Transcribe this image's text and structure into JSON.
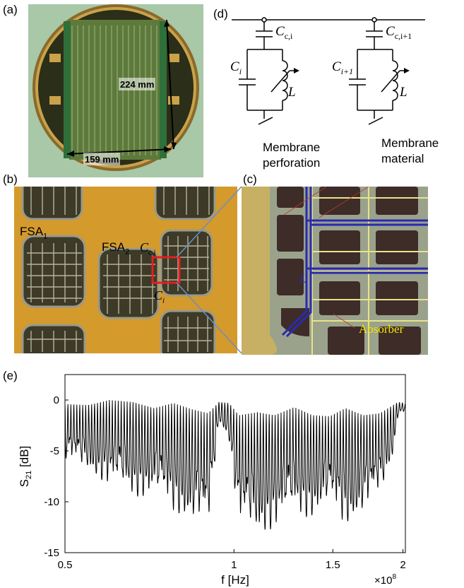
{
  "panels": {
    "a": {
      "label": "(a)",
      "dim_vertical": "224 mm",
      "dim_horizontal": "159 mm"
    },
    "b": {
      "label": "(b)",
      "fsa1": "FSA",
      "fsa1_sub": "1",
      "fsa2": "FSA",
      "fsa2_sub": "2",
      "cc": "C",
      "cc_sub": "c,i",
      "ci": "C",
      "ci_sub": "i"
    },
    "c": {
      "label": "(c)",
      "membrane_perforation_1": "Membrane",
      "membrane_perforation_2": "perforation",
      "membrane_material_1": "Membrane",
      "membrane_material_2": "material",
      "inductor": "L",
      "absorber": "Absorber"
    },
    "d": {
      "label": "(d)",
      "cc_i": "C",
      "cc_i_sub": "c,i",
      "cc_i1": "C",
      "cc_i1_sub": "c,i+1",
      "ci": "C",
      "ci_sub": "i",
      "ci1": "C",
      "ci1_sub": "i+1",
      "L1": "L",
      "L2": "L"
    },
    "e": {
      "label": "(e)"
    }
  },
  "chart_data": {
    "type": "line",
    "xlabel": "f [Hz]",
    "x_multiplier": "×10",
    "x_multiplier_exp": "8",
    "ylabel": "S",
    "ylabel_sub": "21",
    "ylabel_unit": "[dB]",
    "x_scale": "log",
    "xlim": [
      0.5,
      2.02
    ],
    "ylim": [
      -15,
      2.5
    ],
    "xticks": [
      0.5,
      1,
      1.5,
      2
    ],
    "xtick_labels": [
      "0.5",
      "1",
      "1.5",
      "2"
    ],
    "yticks": [
      0,
      -5,
      -10,
      -15
    ],
    "ytick_labels": [
      "0",
      "-5",
      "-10",
      "-15"
    ],
    "envelope": {
      "x": [
        0.5,
        0.55,
        0.6,
        0.66,
        0.72,
        0.78,
        0.84,
        0.9,
        0.94,
        0.98,
        1.02,
        1.1,
        1.18,
        1.28,
        1.38,
        1.48,
        1.58,
        1.7,
        1.82,
        1.92,
        1.96,
        2.02
      ],
      "top": [
        -0.4,
        -0.5,
        0,
        -0.2,
        -0.8,
        -0.3,
        -0.9,
        -1.3,
        -0.2,
        -0.3,
        -1.5,
        -1.2,
        -1.5,
        -0.7,
        -1.5,
        -1.6,
        -0.8,
        -1.5,
        -1.3,
        -0.5,
        -0.2,
        -0.3
      ],
      "bottom": [
        -6.0,
        -7.0,
        -8.5,
        -9.5,
        -9.5,
        -11.0,
        -12.0,
        -13.0,
        -2.0,
        -4.0,
        -12.5,
        -13.5,
        -12.5,
        -11.5,
        -11.5,
        -10.5,
        -12.5,
        -11.0,
        -9.5,
        -5.5,
        -1.5,
        -1.0
      ]
    },
    "num_dips": 115
  }
}
